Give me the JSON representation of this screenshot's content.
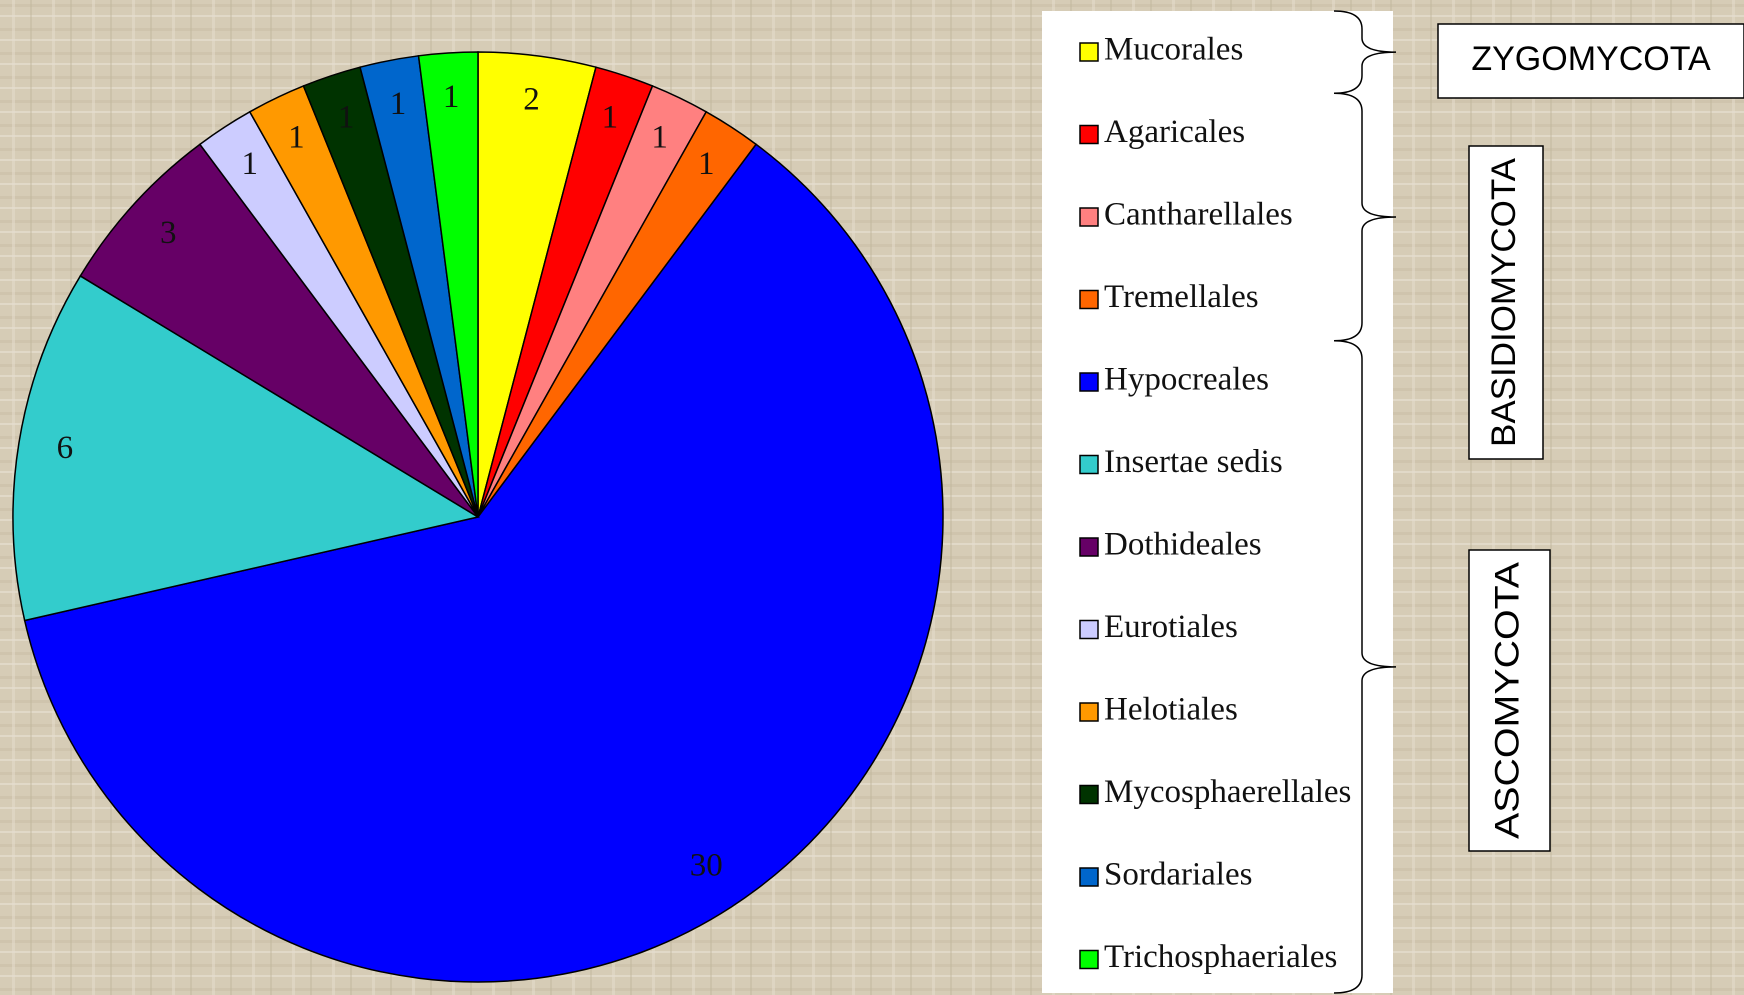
{
  "chart_data": {
    "type": "pie",
    "categories": [
      "Mucorales",
      "Agaricales",
      "Cantharellales",
      "Tremellales",
      "Hypocreales",
      "Insertae sedis",
      "Dothideales",
      "Eurotiales",
      "Helotiales",
      "Mycosphaerellales",
      "Sordariales",
      "Trichosphaeriales"
    ],
    "values": [
      2,
      1,
      1,
      1,
      30,
      6,
      3,
      1,
      1,
      1,
      1,
      1
    ],
    "colors": [
      "#ffff00",
      "#ff0000",
      "#ff8080",
      "#ff6600",
      "#0000ff",
      "#33cccc",
      "#660066",
      "#ccccff",
      "#ff9900",
      "#003300",
      "#0066cc",
      "#00ff00"
    ],
    "groups": [
      {
        "label": "ZYGOMYCOTA",
        "from": 0,
        "to": 0
      },
      {
        "label": "BASIDIOMYCOTA",
        "from": 1,
        "to": 3
      },
      {
        "label": "ASCOMYCOTA",
        "from": 4,
        "to": 11
      }
    ]
  }
}
